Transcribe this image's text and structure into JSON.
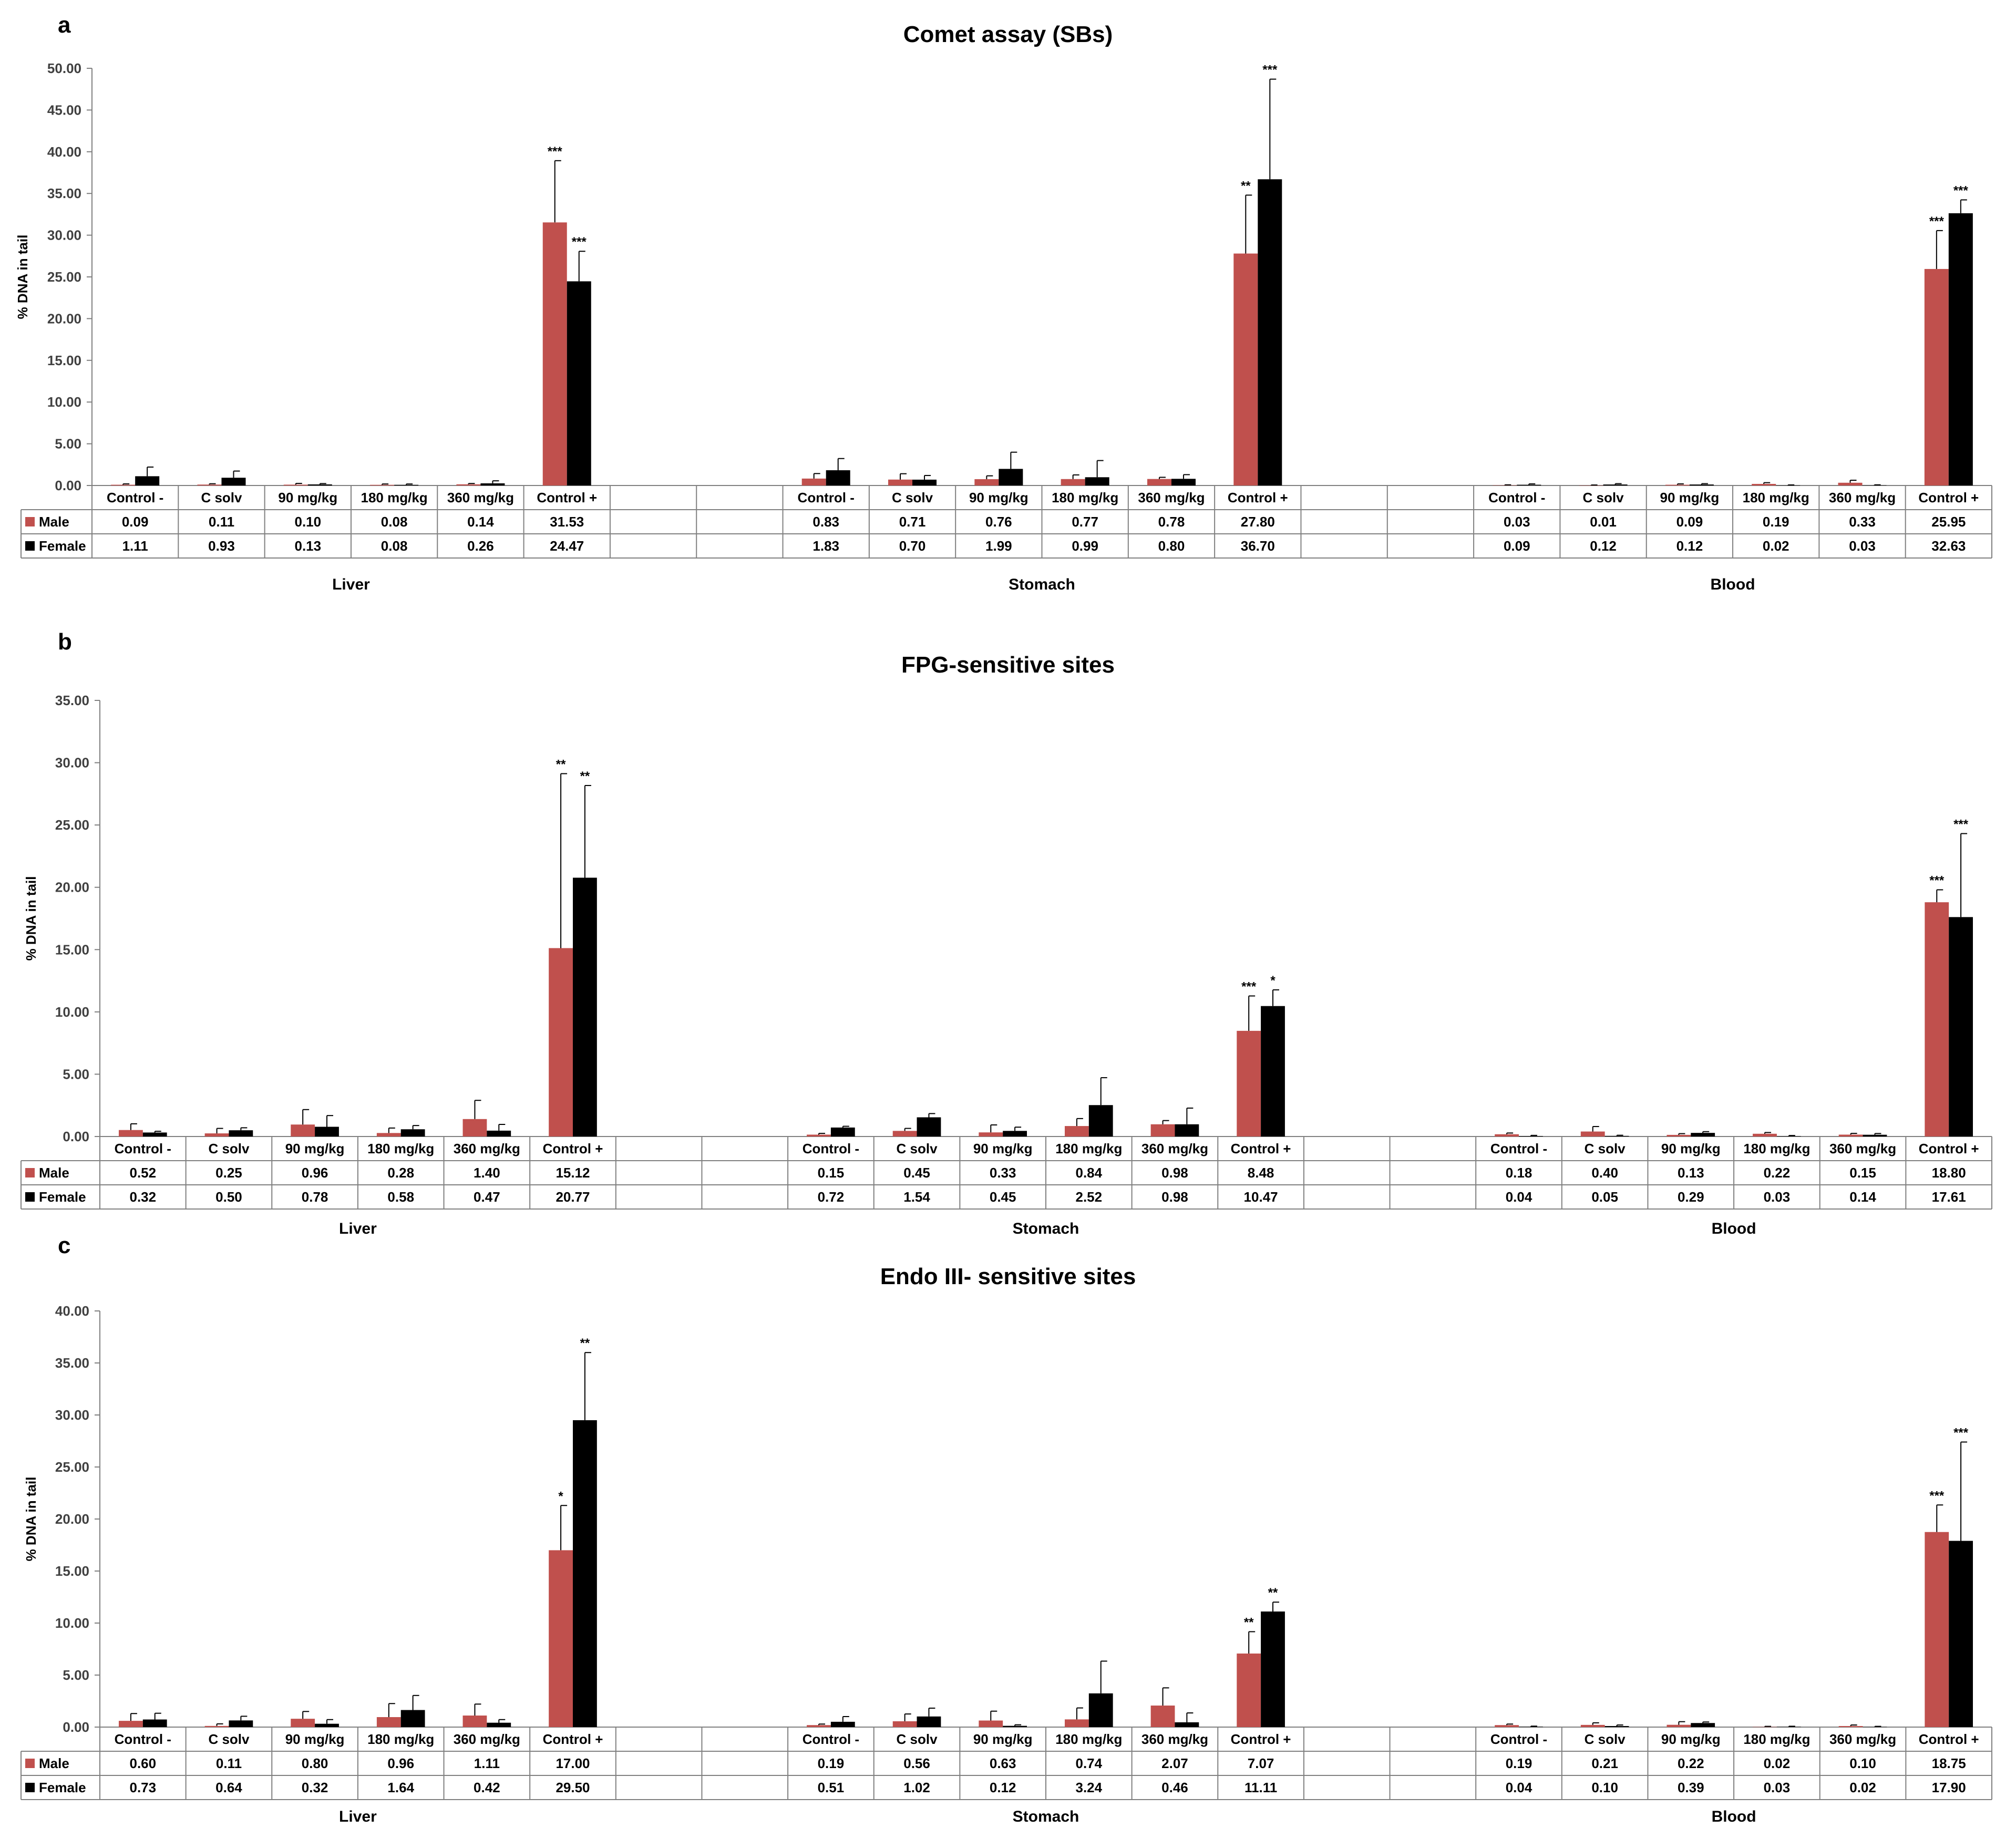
{
  "colors": {
    "male": "#c0504d",
    "female": "#000000",
    "axis": "#808080",
    "grid": "#808080"
  },
  "chart_data": [
    {
      "type": "bar",
      "panel": "a",
      "title": "Comet assay (SBs)",
      "ylabel": "% DNA in tail",
      "ylim": [
        0,
        50
      ],
      "yticks": [
        "0.00",
        "5.00",
        "10.00",
        "15.00",
        "20.00",
        "25.00",
        "30.00",
        "35.00",
        "40.00",
        "45.00",
        "50.00"
      ],
      "groups": [
        {
          "name": "Liver",
          "categories": [
            "Control -",
            "C solv",
            "90 mg/kg",
            "180 mg/kg",
            "360 mg/kg",
            "Control +"
          ],
          "series": [
            {
              "name": "Male",
              "values": [
                0.09,
                0.11,
                0.1,
                0.08,
                0.14,
                31.53
              ],
              "labels": [
                "0.09",
                "0.11",
                "0.10",
                "0.08",
                "0.14",
                "31.53"
              ],
              "errors": [
                0.1,
                0.1,
                0.15,
                0.1,
                0.1,
                7.4
              ],
              "sig": [
                "",
                "",
                "",
                "",
                "",
                "***"
              ]
            },
            {
              "name": "Female",
              "values": [
                1.11,
                0.93,
                0.13,
                0.08,
                0.26,
                24.47
              ],
              "labels": [
                "1.11",
                "0.93",
                "0.13",
                "0.08",
                "0.26",
                "24.47"
              ],
              "errors": [
                1.1,
                0.8,
                0.1,
                0.1,
                0.3,
                3.6
              ],
              "sig": [
                "",
                "",
                "",
                "",
                "",
                "***"
              ]
            }
          ]
        },
        {
          "name": "Stomach",
          "categories": [
            "Control -",
            "C solv",
            "90 mg/kg",
            "180 mg/kg",
            "360 mg/kg",
            "Control +"
          ],
          "series": [
            {
              "name": "Male",
              "values": [
                0.83,
                0.71,
                0.76,
                0.77,
                0.78,
                27.8
              ],
              "labels": [
                "0.83",
                "0.71",
                "0.76",
                "0.77",
                "0.78",
                "27.80"
              ],
              "errors": [
                0.6,
                0.7,
                0.4,
                0.5,
                0.2,
                7.0
              ],
              "sig": [
                "",
                "",
                "",
                "",
                "",
                "**"
              ]
            },
            {
              "name": "Female",
              "values": [
                1.83,
                0.7,
                1.99,
                0.99,
                0.8,
                36.7
              ],
              "labels": [
                "1.83",
                "0.70",
                "1.99",
                "0.99",
                "0.80",
                "36.70"
              ],
              "errors": [
                1.4,
                0.5,
                2.0,
                2.0,
                0.5,
                12.0
              ],
              "sig": [
                "",
                "",
                "",
                "",
                "",
                "***"
              ]
            }
          ]
        },
        {
          "name": "Blood",
          "categories": [
            "Control -",
            "C solv",
            "90 mg/kg",
            "180 mg/kg",
            "360 mg/kg",
            "Control +"
          ],
          "series": [
            {
              "name": "Male",
              "values": [
                0.03,
                0.01,
                0.09,
                0.19,
                0.33,
                25.95
              ],
              "labels": [
                "0.03",
                "0.01",
                "0.09",
                "0.19",
                "0.33",
                "25.95"
              ],
              "errors": [
                0.05,
                0.05,
                0.1,
                0.15,
                0.3,
                4.6
              ],
              "sig": [
                "",
                "",
                "",
                "",
                "",
                "***"
              ]
            },
            {
              "name": "Female",
              "values": [
                0.09,
                0.12,
                0.12,
                0.02,
                0.03,
                32.63
              ],
              "labels": [
                "0.09",
                "0.12",
                "0.12",
                "0.02",
                "0.03",
                "32.63"
              ],
              "errors": [
                0.1,
                0.1,
                0.1,
                0.05,
                0.05,
                1.6
              ],
              "sig": [
                "",
                "",
                "",
                "",
                "",
                "***"
              ]
            }
          ]
        }
      ]
    },
    {
      "type": "bar",
      "panel": "b",
      "title": "FPG-sensitive sites",
      "ylabel": "% DNA in tail",
      "ylim": [
        0,
        35
      ],
      "yticks": [
        "0.00",
        "5.00",
        "10.00",
        "15.00",
        "20.00",
        "25.00",
        "30.00",
        "35.00"
      ],
      "groups": [
        {
          "name": "Liver",
          "categories": [
            "Control -",
            "C solv",
            "90 mg/kg",
            "180 mg/kg",
            "360 mg/kg",
            "Control +"
          ],
          "series": [
            {
              "name": "Male",
              "values": [
                0.52,
                0.25,
                0.96,
                0.28,
                1.4,
                15.12
              ],
              "labels": [
                "0.52",
                "0.25",
                "0.96",
                "0.28",
                "1.40",
                "15.12"
              ],
              "errors": [
                0.5,
                0.4,
                1.2,
                0.4,
                1.5,
                14.0
              ],
              "sig": [
                "",
                "",
                "",
                "",
                "",
                "**"
              ]
            },
            {
              "name": "Female",
              "values": [
                0.32,
                0.5,
                0.78,
                0.58,
                0.47,
                20.77
              ],
              "labels": [
                "0.32",
                "0.50",
                "0.78",
                "0.58",
                "0.47",
                "20.77"
              ],
              "errors": [
                0.1,
                0.2,
                0.9,
                0.3,
                0.5,
                7.4
              ],
              "sig": [
                "",
                "",
                "",
                "",
                "",
                "**"
              ]
            }
          ]
        },
        {
          "name": "Stomach",
          "categories": [
            "Control -",
            "C solv",
            "90 mg/kg",
            "180 mg/kg",
            "360 mg/kg",
            "Control +"
          ],
          "series": [
            {
              "name": "Male",
              "values": [
                0.15,
                0.45,
                0.33,
                0.84,
                0.98,
                8.48
              ],
              "labels": [
                "0.15",
                "0.45",
                "0.33",
                "0.84",
                "0.98",
                "8.48"
              ],
              "errors": [
                0.1,
                0.2,
                0.6,
                0.6,
                0.3,
                2.8
              ],
              "sig": [
                "",
                "",
                "",
                "",
                "",
                "***"
              ]
            },
            {
              "name": "Female",
              "values": [
                0.72,
                1.54,
                0.45,
                2.52,
                0.98,
                10.47
              ],
              "labels": [
                "0.72",
                "1.54",
                "0.45",
                "2.52",
                "0.98",
                "10.47"
              ],
              "errors": [
                0.1,
                0.3,
                0.3,
                2.2,
                1.3,
                1.3
              ],
              "sig": [
                "",
                "",
                "",
                "",
                "",
                "*"
              ]
            }
          ]
        },
        {
          "name": "Blood",
          "categories": [
            "Control -",
            "C solv",
            "90 mg/kg",
            "180 mg/kg",
            "360 mg/kg",
            "Control +"
          ],
          "series": [
            {
              "name": "Male",
              "values": [
                0.18,
                0.4,
                0.13,
                0.22,
                0.15,
                18.8
              ],
              "labels": [
                "0.18",
                "0.40",
                "0.13",
                "0.22",
                "0.15",
                "18.80"
              ],
              "errors": [
                0.1,
                0.4,
                0.1,
                0.1,
                0.1,
                1.0
              ],
              "sig": [
                "",
                "",
                "",
                "",
                "",
                "***"
              ]
            },
            {
              "name": "Female",
              "values": [
                0.04,
                0.05,
                0.29,
                0.03,
                0.14,
                17.61
              ],
              "labels": [
                "0.04",
                "0.05",
                "0.29",
                "0.03",
                "0.14",
                "17.61"
              ],
              "errors": [
                0.05,
                0.05,
                0.1,
                0.05,
                0.1,
                6.7
              ],
              "sig": [
                "",
                "",
                "",
                "",
                "",
                "***"
              ]
            }
          ]
        }
      ]
    },
    {
      "type": "bar",
      "panel": "c",
      "title": "Endo III- sensitive sites",
      "ylabel": "% DNA in tail",
      "ylim": [
        0,
        40
      ],
      "yticks": [
        "0.00",
        "5.00",
        "10.00",
        "15.00",
        "20.00",
        "25.00",
        "30.00",
        "35.00",
        "40.00"
      ],
      "groups": [
        {
          "name": "Liver",
          "categories": [
            "Control -",
            "C solv",
            "90 mg/kg",
            "180 mg/kg",
            "360 mg/kg",
            "Control +"
          ],
          "series": [
            {
              "name": "Male",
              "values": [
                0.6,
                0.11,
                0.8,
                0.96,
                1.11,
                17.0
              ],
              "labels": [
                "0.60",
                "0.11",
                "0.80",
                "0.96",
                "1.11",
                "17.00"
              ],
              "errors": [
                0.7,
                0.2,
                0.7,
                1.3,
                1.1,
                4.3
              ],
              "sig": [
                "",
                "",
                "",
                "",
                "",
                "*"
              ]
            },
            {
              "name": "Female",
              "values": [
                0.73,
                0.64,
                0.32,
                1.64,
                0.42,
                29.5
              ],
              "labels": [
                "0.73",
                "0.64",
                "0.32",
                "1.64",
                "0.42",
                "29.50"
              ],
              "errors": [
                0.6,
                0.4,
                0.4,
                1.4,
                0.3,
                6.5
              ],
              "sig": [
                "",
                "",
                "",
                "",
                "",
                "**"
              ]
            }
          ]
        },
        {
          "name": "Stomach",
          "categories": [
            "Control -",
            "C solv",
            "90 mg/kg",
            "180 mg/kg",
            "360 mg/kg",
            "Control +"
          ],
          "series": [
            {
              "name": "Male",
              "values": [
                0.19,
                0.56,
                0.63,
                0.74,
                2.07,
                7.07
              ],
              "labels": [
                "0.19",
                "0.56",
                "0.63",
                "0.74",
                "2.07",
                "7.07"
              ],
              "errors": [
                0.1,
                0.7,
                0.9,
                1.1,
                1.7,
                2.1
              ],
              "sig": [
                "",
                "",
                "",
                "",
                "",
                "**"
              ]
            },
            {
              "name": "Female",
              "values": [
                0.51,
                1.02,
                0.12,
                3.24,
                0.46,
                11.11
              ],
              "labels": [
                "0.51",
                "1.02",
                "0.12",
                "3.24",
                "0.46",
                "11.11"
              ],
              "errors": [
                0.5,
                0.8,
                0.1,
                3.1,
                0.9,
                0.9
              ],
              "sig": [
                "",
                "",
                "",
                "",
                "",
                "**"
              ]
            }
          ]
        },
        {
          "name": "Blood",
          "categories": [
            "Control -",
            "C solv",
            "90 mg/kg",
            "180 mg/kg",
            "360 mg/kg",
            "Control +"
          ],
          "series": [
            {
              "name": "Male",
              "values": [
                0.19,
                0.21,
                0.22,
                0.02,
                0.1,
                18.75
              ],
              "labels": [
                "0.19",
                "0.21",
                "0.22",
                "0.02",
                "0.10",
                "18.75"
              ],
              "errors": [
                0.1,
                0.2,
                0.3,
                0.05,
                0.1,
                2.6
              ],
              "sig": [
                "",
                "",
                "",
                "",
                "",
                "***"
              ]
            },
            {
              "name": "Female",
              "values": [
                0.04,
                0.1,
                0.39,
                0.03,
                0.02,
                17.9
              ],
              "labels": [
                "0.04",
                "0.10",
                "0.39",
                "0.03",
                "0.02",
                "17.90"
              ],
              "errors": [
                0.05,
                0.1,
                0.1,
                0.05,
                0.05,
                9.5
              ],
              "sig": [
                "",
                "",
                "",
                "",
                "",
                "***"
              ]
            }
          ]
        }
      ]
    }
  ]
}
